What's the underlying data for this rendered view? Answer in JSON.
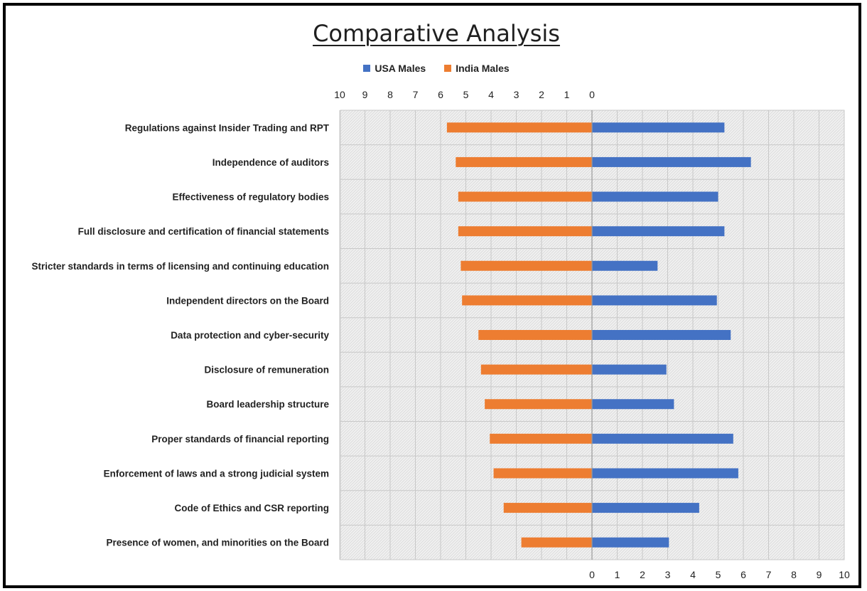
{
  "chart_data": {
    "type": "bar",
    "orientation": "horizontal-diverging",
    "title": "Comparative Analysis",
    "categories": [
      "Regulations against Insider Trading and RPT",
      "Independence of auditors",
      "Effectiveness of regulatory bodies",
      "Full disclosure and certification of financial statements",
      "Stricter standards in terms of licensing and continuing education",
      "Independent directors on the Board",
      "Data protection and cyber-security",
      "Disclosure of  remuneration",
      "Board leadership structure",
      "Proper standards of financial reporting",
      "Enforcement of laws and a strong judicial system",
      "Code of Ethics and CSR reporting",
      "Presence of women, and minorities on the Board"
    ],
    "series": [
      {
        "name": "USA Males",
        "color": "#4472C4",
        "direction": "right",
        "values": [
          5.25,
          6.3,
          5.0,
          5.25,
          2.6,
          4.95,
          5.5,
          2.95,
          3.25,
          5.6,
          5.8,
          4.25,
          3.05
        ]
      },
      {
        "name": "India Males",
        "color": "#ED7D31",
        "direction": "left",
        "values": [
          5.75,
          5.4,
          5.3,
          5.3,
          5.2,
          5.15,
          4.5,
          4.4,
          4.25,
          4.05,
          3.9,
          3.5,
          2.8
        ]
      }
    ],
    "xlim_left": [
      0,
      10
    ],
    "xlim_right": [
      0,
      10
    ],
    "ticks_left": [
      "10",
      "9",
      "8",
      "7",
      "6",
      "5",
      "4",
      "3",
      "2",
      "1",
      "0"
    ],
    "ticks_right": [
      "0",
      "1",
      "2",
      "3",
      "4",
      "5",
      "6",
      "7",
      "8",
      "9",
      "10"
    ],
    "left_axis_position": "top",
    "right_axis_position": "bottom",
    "legend_position": "top-center",
    "grid": true
  }
}
